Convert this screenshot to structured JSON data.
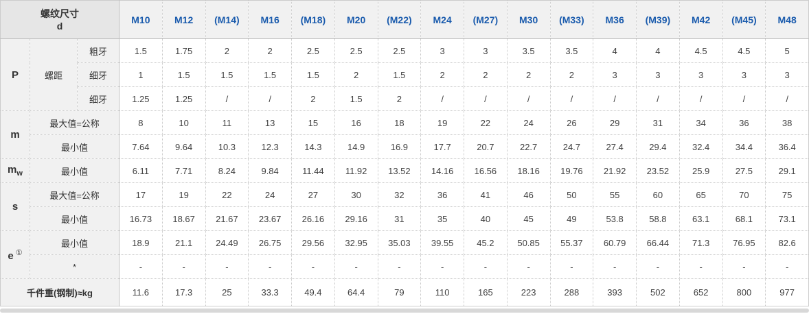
{
  "colors": {
    "accent_blue": "#1a5bad",
    "corner_header_bg": "#e6e6e6",
    "column_header_bg": "#f1f1f1",
    "label_cell_bg": "#f1f1f1",
    "data_cell_bg": "#ffffff"
  },
  "table": {
    "header": {
      "title": "螺纹尺寸",
      "symbol": "d",
      "columns": [
        "M10",
        "M12",
        "(M14)",
        "M16",
        "(M18)",
        "M20",
        "(M22)",
        "M24",
        "(M27)",
        "M30",
        "(M33)",
        "M36",
        "(M39)",
        "M42",
        "(M45)",
        "M48"
      ]
    },
    "row_groups": [
      {
        "key": "P",
        "label": "P",
        "sub": "",
        "sup": "",
        "mid_label": "螺距",
        "rows": [
          {
            "label": "粗牙",
            "values": [
              "1.5",
              "1.75",
              "2",
              "2",
              "2.5",
              "2.5",
              "2.5",
              "3",
              "3",
              "3.5",
              "3.5",
              "4",
              "4",
              "4.5",
              "4.5",
              "5"
            ]
          },
          {
            "label": "细牙",
            "values": [
              "1",
              "1.5",
              "1.5",
              "1.5",
              "1.5",
              "2",
              "1.5",
              "2",
              "2",
              "2",
              "2",
              "3",
              "3",
              "3",
              "3",
              "3"
            ]
          },
          {
            "label": "细牙",
            "values": [
              "1.25",
              "1.25",
              "/",
              "/",
              "2",
              "1.5",
              "2",
              "/",
              "/",
              "/",
              "/",
              "/",
              "/",
              "/",
              "/",
              "/"
            ]
          }
        ]
      },
      {
        "key": "m",
        "label": "m",
        "sub": "",
        "sup": "",
        "mid_label": "",
        "rows": [
          {
            "label": "最大值=公称",
            "values": [
              "8",
              "10",
              "11",
              "13",
              "15",
              "16",
              "18",
              "19",
              "22",
              "24",
              "26",
              "29",
              "31",
              "34",
              "36",
              "38"
            ]
          },
          {
            "label": "最小值",
            "values": [
              "7.64",
              "9.64",
              "10.3",
              "12.3",
              "14.3",
              "14.9",
              "16.9",
              "17.7",
              "20.7",
              "22.7",
              "24.7",
              "27.4",
              "29.4",
              "32.4",
              "34.4",
              "36.4"
            ]
          }
        ]
      },
      {
        "key": "mw",
        "label": "m",
        "sub": "w",
        "sup": "",
        "mid_label": "",
        "rows": [
          {
            "label": "最小值",
            "values": [
              "6.11",
              "7.71",
              "8.24",
              "9.84",
              "11.44",
              "11.92",
              "13.52",
              "14.16",
              "16.56",
              "18.16",
              "19.76",
              "21.92",
              "23.52",
              "25.9",
              "27.5",
              "29.1"
            ]
          }
        ]
      },
      {
        "key": "s",
        "label": "s",
        "sub": "",
        "sup": "",
        "mid_label": "",
        "rows": [
          {
            "label": "最大值=公称",
            "values": [
              "17",
              "19",
              "22",
              "24",
              "27",
              "30",
              "32",
              "36",
              "41",
              "46",
              "50",
              "55",
              "60",
              "65",
              "70",
              "75"
            ]
          },
          {
            "label": "最小值",
            "values": [
              "16.73",
              "18.67",
              "21.67",
              "23.67",
              "26.16",
              "29.16",
              "31",
              "35",
              "40",
              "45",
              "49",
              "53.8",
              "58.8",
              "63.1",
              "68.1",
              "73.1"
            ]
          }
        ]
      },
      {
        "key": "e",
        "label": "e",
        "sub": "",
        "sup": "①",
        "mid_label": "",
        "rows": [
          {
            "label": "最小值",
            "values": [
              "18.9",
              "21.1",
              "24.49",
              "26.75",
              "29.56",
              "32.95",
              "35.03",
              "39.55",
              "45.2",
              "50.85",
              "55.37",
              "60.79",
              "66.44",
              "71.3",
              "76.95",
              "82.6"
            ]
          },
          {
            "label": "*",
            "values": [
              "-",
              "-",
              "-",
              "-",
              "-",
              "-",
              "-",
              "-",
              "-",
              "-",
              "-",
              "-",
              "-",
              "-",
              "-",
              "-"
            ]
          }
        ]
      }
    ],
    "footer_row": {
      "label": "千件重(钢制)≈kg",
      "values": [
        "11.6",
        "17.3",
        "25",
        "33.3",
        "49.4",
        "64.4",
        "79",
        "110",
        "165",
        "223",
        "288",
        "393",
        "502",
        "652",
        "800",
        "977"
      ]
    }
  }
}
